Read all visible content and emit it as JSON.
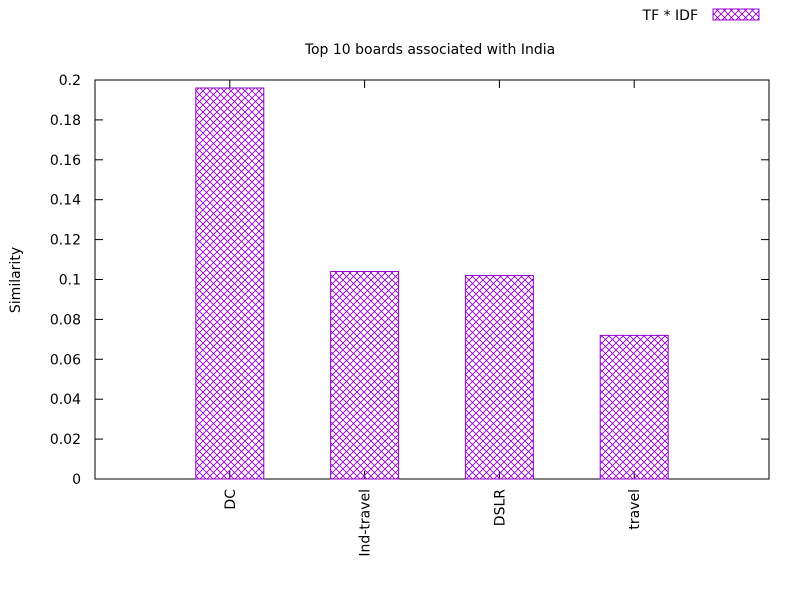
{
  "chart_data": {
    "type": "bar",
    "title": "Top 10 boards associated with India",
    "xlabel": "",
    "ylabel": "Similarity",
    "ylim": [
      0,
      0.2
    ],
    "yticks": [
      "0",
      "0.02",
      "0.04",
      "0.06",
      "0.08",
      "0.1",
      "0.12",
      "0.14",
      "0.16",
      "0.18",
      "0.2"
    ],
    "categories": [
      "DC",
      "Ind-travel",
      "DSLR",
      "travel"
    ],
    "series": [
      {
        "name": "TF * IDF",
        "values": [
          0.196,
          0.104,
          0.102,
          0.072
        ]
      }
    ],
    "bar_color": "#9400d3",
    "grid": false,
    "legend_position": "top-right"
  }
}
